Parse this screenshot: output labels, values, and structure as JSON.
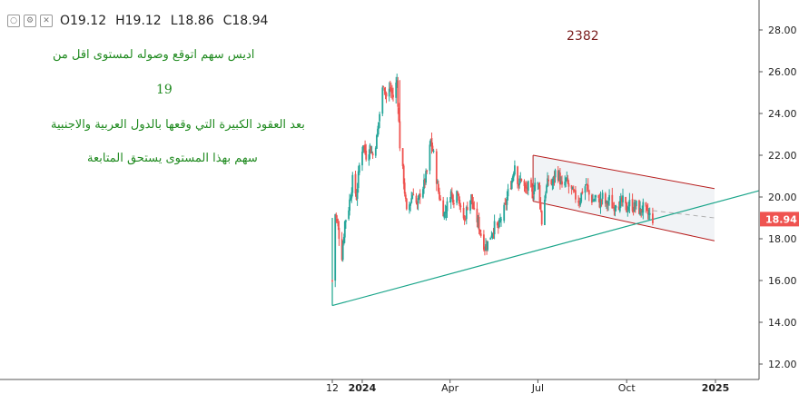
{
  "header": {
    "open": "O19.12",
    "high": "H19.12",
    "low": "L18.86",
    "close": "C18.94",
    "buttons": [
      {
        "name": "hide-eye-icon",
        "glyph": "○"
      },
      {
        "name": "settings-gear-icon",
        "glyph": "⚙"
      },
      {
        "name": "close-icon",
        "glyph": "✕"
      }
    ]
  },
  "annotations": {
    "line1": "اديس سهم اتوقع وصوله لمستوى اقل من",
    "line2": "19",
    "line3": "بعد العقود الكبيرة التي وقعها بالدول  العربية والاجنبية",
    "line4": "سهم بهذا المستوى يستحق المتابعة",
    "number": "2382"
  },
  "chart_data": {
    "type": "candlestick",
    "title": "",
    "last_price": 18.94,
    "last_price_label": "18.94",
    "yaxis": {
      "min": 11.5,
      "max": 29.0,
      "ticks": [
        "28.00",
        "26.00",
        "24.00",
        "22.00",
        "20.00",
        "18.00",
        "16.00",
        "14.00",
        "12.00"
      ],
      "tick_values": [
        28,
        26,
        24,
        22,
        20,
        18,
        16,
        14,
        12
      ],
      "position": "right"
    },
    "xaxis": {
      "ticks": [
        "12",
        "2024",
        "Apr",
        "Jul",
        "Oct",
        "2025"
      ],
      "tick_dates": [
        "2023-12-01",
        "2024-01-01",
        "2024-04-01",
        "2024-07-01",
        "2024-10-01",
        "2025-01-01"
      ]
    },
    "grid": false,
    "price_path": [
      [
        "2023-12-01",
        16.0
      ],
      [
        "2023-12-04",
        19.2
      ],
      [
        "2023-12-07",
        18.5
      ],
      [
        "2023-12-11",
        17.2
      ],
      [
        "2023-12-14",
        18.8
      ],
      [
        "2023-12-18",
        19.5
      ],
      [
        "2023-12-22",
        20.8
      ],
      [
        "2023-12-26",
        20.0
      ],
      [
        "2023-12-29",
        21.5
      ],
      [
        "2024-01-02",
        22.6
      ],
      [
        "2024-01-05",
        22.0
      ],
      [
        "2024-01-09",
        22.4
      ],
      [
        "2024-01-12",
        22.0
      ],
      [
        "2024-01-16",
        22.8
      ],
      [
        "2024-01-19",
        24.0
      ],
      [
        "2024-01-23",
        25.5
      ],
      [
        "2024-01-26",
        24.8
      ],
      [
        "2024-01-30",
        25.2
      ],
      [
        "2024-02-02",
        24.8
      ],
      [
        "2024-02-06",
        25.6
      ],
      [
        "2024-02-09",
        22.5
      ],
      [
        "2024-02-13",
        20.8
      ],
      [
        "2024-02-16",
        19.2
      ],
      [
        "2024-02-20",
        19.8
      ],
      [
        "2024-02-23",
        20.3
      ],
      [
        "2024-02-27",
        19.5
      ],
      [
        "2024-03-01",
        20.2
      ],
      [
        "2024-03-05",
        20.6
      ],
      [
        "2024-03-08",
        21.2
      ],
      [
        "2024-03-12",
        22.7
      ],
      [
        "2024-03-15",
        22.0
      ],
      [
        "2024-03-19",
        20.5
      ],
      [
        "2024-03-22",
        19.8
      ],
      [
        "2024-03-26",
        19.2
      ],
      [
        "2024-03-29",
        19.6
      ],
      [
        "2024-04-02",
        20.2
      ],
      [
        "2024-04-05",
        19.9
      ],
      [
        "2024-04-09",
        20.4
      ],
      [
        "2024-04-12",
        19.3
      ],
      [
        "2024-04-16",
        18.9
      ],
      [
        "2024-04-19",
        19.6
      ],
      [
        "2024-04-23",
        20.0
      ],
      [
        "2024-04-26",
        19.2
      ],
      [
        "2024-04-30",
        18.8
      ],
      [
        "2024-05-03",
        18.2
      ],
      [
        "2024-05-07",
        17.6
      ],
      [
        "2024-05-10",
        17.8
      ],
      [
        "2024-05-14",
        18.3
      ],
      [
        "2024-05-17",
        18.6
      ],
      [
        "2024-05-21",
        18.5
      ],
      [
        "2024-05-24",
        19.0
      ],
      [
        "2024-05-28",
        19.5
      ],
      [
        "2024-05-31",
        20.2
      ],
      [
        "2024-06-04",
        20.8
      ],
      [
        "2024-06-07",
        21.6
      ],
      [
        "2024-06-11",
        20.6
      ],
      [
        "2024-06-14",
        20.9
      ],
      [
        "2024-06-18",
        20.3
      ],
      [
        "2024-06-21",
        20.5
      ],
      [
        "2024-06-25",
        20.1
      ],
      [
        "2024-06-28",
        20.7
      ],
      [
        "2024-07-02",
        20.5
      ],
      [
        "2024-07-05",
        18.8
      ],
      [
        "2024-07-09",
        20.3
      ],
      [
        "2024-07-12",
        20.8
      ],
      [
        "2024-07-16",
        20.6
      ],
      [
        "2024-07-19",
        21.2
      ],
      [
        "2024-07-23",
        21.0
      ],
      [
        "2024-07-26",
        20.4
      ],
      [
        "2024-07-30",
        20.8
      ],
      [
        "2024-08-02",
        20.5
      ],
      [
        "2024-08-06",
        20.2
      ],
      [
        "2024-08-09",
        20.0
      ],
      [
        "2024-08-13",
        19.8
      ],
      [
        "2024-08-16",
        20.3
      ],
      [
        "2024-08-20",
        20.6
      ],
      [
        "2024-08-23",
        20.1
      ],
      [
        "2024-08-27",
        19.8
      ],
      [
        "2024-08-30",
        20.0
      ],
      [
        "2024-09-03",
        19.7
      ],
      [
        "2024-09-06",
        20.0
      ],
      [
        "2024-09-10",
        19.6
      ],
      [
        "2024-09-13",
        19.9
      ],
      [
        "2024-09-17",
        19.5
      ],
      [
        "2024-09-20",
        19.8
      ],
      [
        "2024-09-24",
        19.6
      ],
      [
        "2024-09-27",
        19.8
      ],
      [
        "2024-10-01",
        19.4
      ],
      [
        "2024-10-04",
        19.7
      ],
      [
        "2024-10-08",
        19.5
      ],
      [
        "2024-10-11",
        19.6
      ],
      [
        "2024-10-15",
        19.3
      ],
      [
        "2024-10-18",
        19.5
      ],
      [
        "2024-10-22",
        19.2
      ],
      [
        "2024-10-25",
        19.1
      ],
      [
        "2024-10-28",
        18.94
      ]
    ],
    "drawings": {
      "trendline": {
        "start": [
          "2023-12-01",
          14.8
        ],
        "end_edge_price": 20.3
      },
      "channel_upper": {
        "start": [
          "2024-06-26",
          22.0
        ],
        "end": [
          "2024-12-31",
          20.4
        ]
      },
      "channel_lower": {
        "start": [
          "2024-06-26",
          19.8
        ],
        "end": [
          "2024-12-31",
          17.9
        ]
      },
      "dashed_projection": {
        "start": [
          "2024-10-28",
          19.35
        ],
        "end": [
          "2024-12-31",
          19.0
        ]
      },
      "red_vertical": {
        "at": "2024-02-09",
        "from": 25.6,
        "to": 22.2
      }
    },
    "colors": {
      "up": "#26a69a",
      "down": "#ef5350",
      "trend": "#1aa58a",
      "channel": "#b71c1c",
      "channel_fill": "#e6e9ee",
      "badge": "#ef5350"
    }
  }
}
